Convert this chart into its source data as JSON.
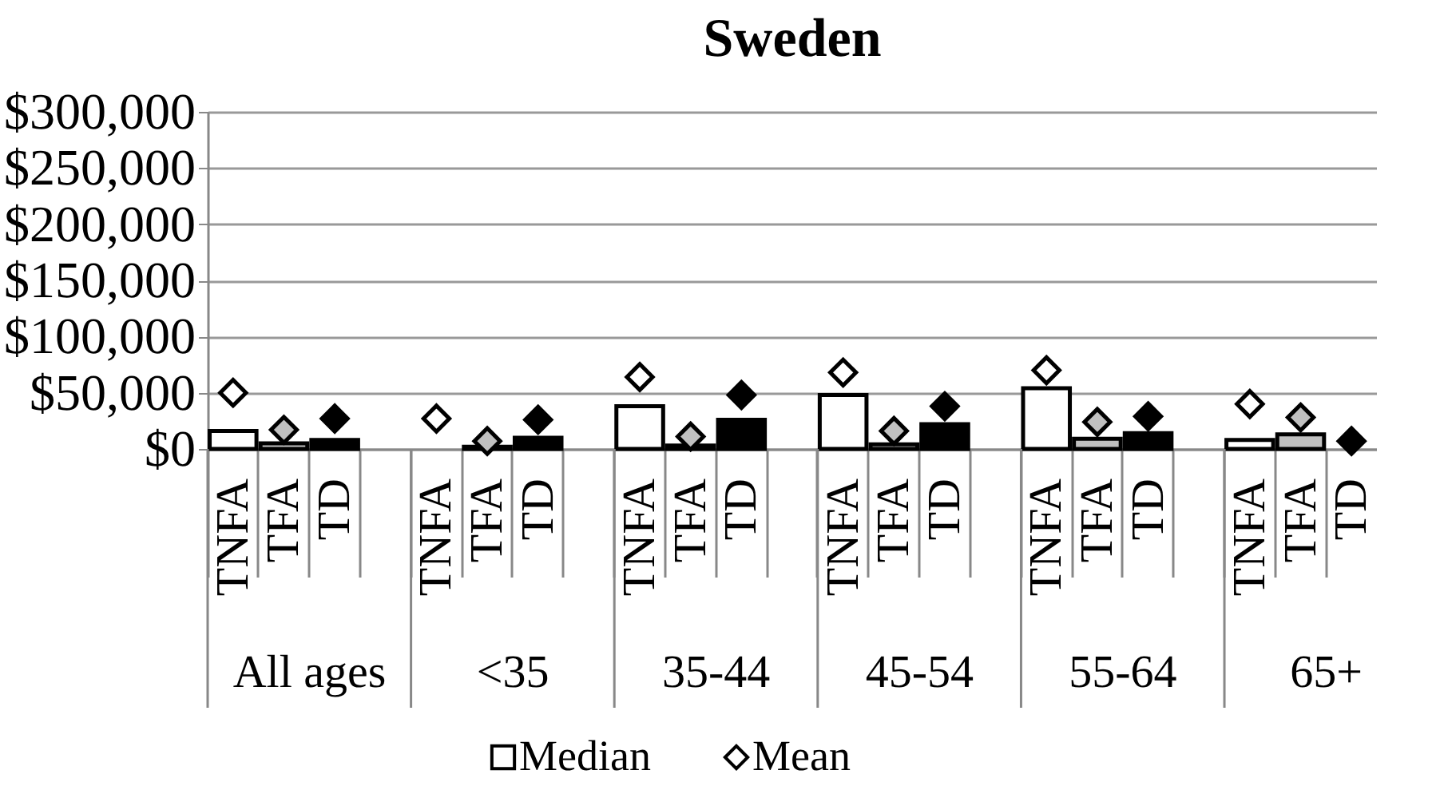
{
  "chart_data": {
    "type": "bar",
    "title": "Sweden",
    "categories": [
      "TNFA",
      "TFA",
      "TD",
      null,
      "TNFA",
      "TFA",
      "TD",
      null,
      "TNFA",
      "TFA",
      "TD",
      null,
      "TNFA",
      "TFA",
      "TD",
      null,
      "TNFA",
      "TFA",
      "TD",
      null,
      "TNFA",
      "TFA",
      "TD"
    ],
    "series": [
      {
        "name": "Median",
        "color": "#ffffff",
        "colors": [
          "#ffffff",
          "#c0c0c0",
          "#000000",
          null,
          "#ffffff",
          "#c0c0c0",
          "#000000",
          null,
          "#ffffff",
          "#c0c0c0",
          "#000000",
          null,
          "#ffffff",
          "#c0c0c0",
          "#000000",
          null,
          "#ffffff",
          "#c0c0c0",
          "#000000",
          null,
          "#ffffff",
          "#c0c0c0",
          "#000000"
        ],
        "values": [
          16000,
          5000,
          8000,
          null,
          null,
          2000,
          10000,
          null,
          38000,
          3000,
          26000,
          null,
          48000,
          4000,
          22000,
          null,
          54000,
          9000,
          14000,
          null,
          8000,
          13000,
          null
        ]
      },
      {
        "name": "Mean",
        "type": "scatter",
        "marker": "diamond",
        "color": "#ffffff",
        "colors": [
          "#ffffff",
          "#c0c0c0",
          "#000000",
          null,
          "#ffffff",
          "#c0c0c0",
          "#000000",
          null,
          "#ffffff",
          "#c0c0c0",
          "#000000",
          null,
          "#ffffff",
          "#c0c0c0",
          "#000000",
          null,
          "#ffffff",
          "#c0c0c0",
          "#000000",
          null,
          "#ffffff",
          "#c0c0c0",
          "#000000"
        ],
        "values": [
          50000,
          17000,
          27000,
          null,
          27000,
          7000,
          26000,
          null,
          64000,
          11000,
          48000,
          null,
          68000,
          16000,
          38000,
          null,
          70000,
          24000,
          29000,
          null,
          40000,
          28000,
          7000
        ]
      }
    ],
    "annotations": [
      "All ages",
      "<35",
      "35-44",
      "45-54",
      "55-64",
      "65+"
    ],
    "ylim": [
      0,
      300000
    ],
    "yticks": [
      {
        "value": 0,
        "label": "$0"
      },
      {
        "value": 50000,
        "label": "$50,000"
      },
      {
        "value": 100000,
        "label": "$100,000"
      },
      {
        "value": 150000,
        "label": "$150,000"
      },
      {
        "value": 200000,
        "label": "$200,000"
      },
      {
        "value": 250000,
        "label": "$250,000"
      },
      {
        "value": 300000,
        "label": "$300,000"
      }
    ],
    "grid": "y",
    "legend": "bottom"
  }
}
